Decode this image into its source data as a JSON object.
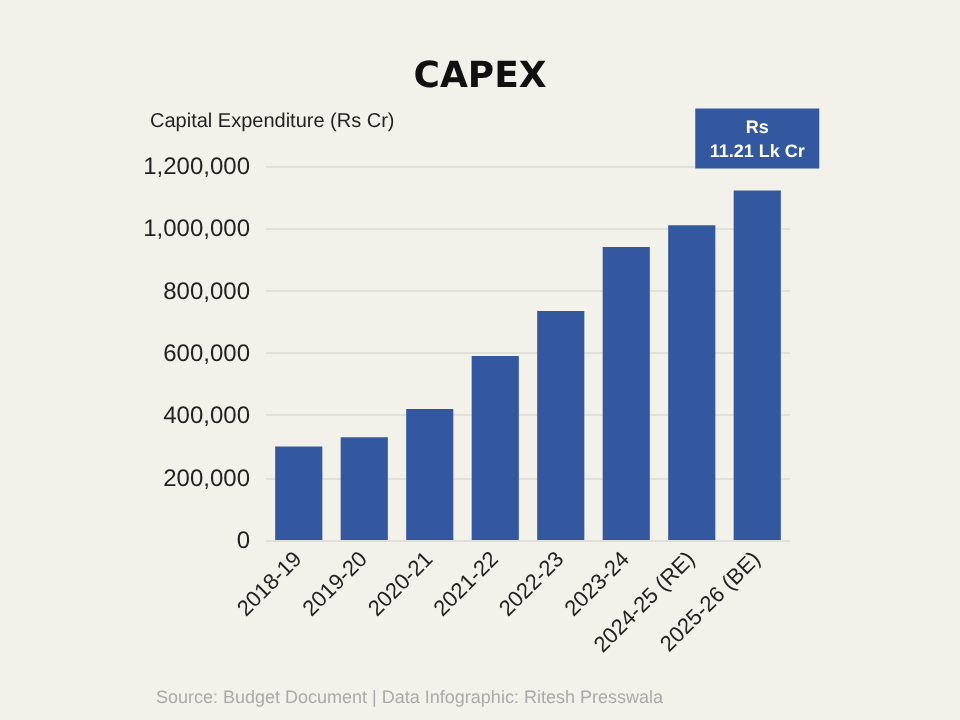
{
  "chart_data": {
    "type": "bar",
    "title": "CAPEX",
    "ylabel": "Capital Expenditure (Rs Cr)",
    "categories": [
      "2018-19",
      "2019-20",
      "2020-21",
      "2021-22",
      "2022-23",
      "2023-24",
      "2024-25 (RE)",
      "2025-26 (BE)"
    ],
    "values": [
      300000,
      330000,
      420000,
      590000,
      735000,
      940000,
      1010000,
      1121000
    ],
    "color": "#34589f",
    "ylim": [
      0,
      1200000
    ],
    "yticks": [
      0,
      {
        "value": 200000,
        "label": "200,000"
      },
      {
        "value": 400000,
        "label": "400,000"
      },
      {
        "value": 600000,
        "label": "600,000"
      },
      {
        "value": 800000,
        "label": "800,000"
      },
      {
        "value": 1000000,
        "label": "1,000,000"
      },
      {
        "value": 1200000,
        "label": "1,200,000"
      }
    ],
    "grid": "y",
    "annotations": [
      {
        "text": "Rs\n11.21 Lk Cr",
        "x": "2025-26 (BE)",
        "y": 1121000
      },
      "Source: Budget Document | Data Infographic: Ritesh Presswala"
    ]
  }
}
